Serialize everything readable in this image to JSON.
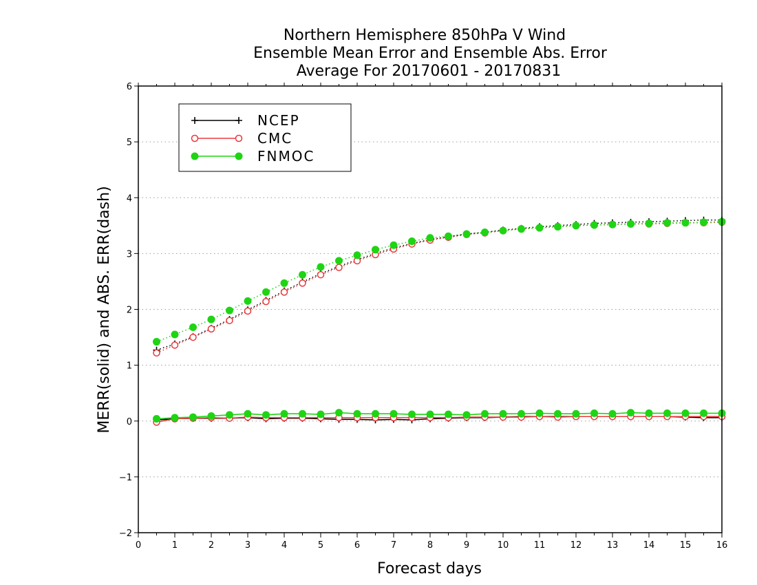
{
  "chart_data": {
    "type": "line",
    "title_lines": [
      "Northern Hemisphere 850hPa V Wind",
      "Ensemble Mean Error and Ensemble Abs. Error",
      "Average For 20170601 - 20170831"
    ],
    "xlabel": "Forecast days",
    "ylabel": "MERR(solid) and ABS. ERR(dash)",
    "xlim": [
      0,
      16
    ],
    "ylim": [
      -2,
      6
    ],
    "x_ticks": [
      "0",
      "1",
      "2",
      "3",
      "4",
      "5",
      "6",
      "7",
      "8",
      "9",
      "10",
      "11",
      "12",
      "13",
      "14",
      "15",
      "16"
    ],
    "y_ticks": [
      "−2",
      "−1",
      "0",
      "1",
      "2",
      "3",
      "4",
      "5",
      "6"
    ],
    "grid": "horizontal dotted",
    "legend_position": "top-left",
    "x": [
      0.5,
      1,
      1.5,
      2,
      2.5,
      3,
      3.5,
      4,
      4.5,
      5,
      5.5,
      6,
      6.5,
      7,
      7.5,
      8,
      8.5,
      9,
      9.5,
      10,
      10.5,
      11,
      11.5,
      12,
      12.5,
      13,
      13.5,
      14,
      14.5,
      15,
      15.5,
      16
    ],
    "series": [
      {
        "name": "NCEP",
        "color": "#000000",
        "marker": "plus",
        "merr": [
          0.02,
          0.04,
          0.05,
          0.05,
          0.05,
          0.06,
          0.04,
          0.05,
          0.05,
          0.04,
          0.03,
          0.03,
          0.02,
          0.03,
          0.02,
          0.04,
          0.05,
          0.06,
          0.06,
          0.07,
          0.08,
          0.08,
          0.08,
          0.08,
          0.08,
          0.08,
          0.08,
          0.08,
          0.08,
          0.07,
          0.06,
          0.06
        ],
        "abs_err": [
          1.27,
          1.38,
          1.51,
          1.66,
          1.82,
          1.99,
          2.16,
          2.33,
          2.49,
          2.64,
          2.77,
          2.89,
          3.0,
          3.1,
          3.18,
          3.25,
          3.3,
          3.35,
          3.38,
          3.42,
          3.45,
          3.48,
          3.5,
          3.52,
          3.54,
          3.55,
          3.56,
          3.57,
          3.58,
          3.59,
          3.6,
          3.6
        ]
      },
      {
        "name": "CMC",
        "color": "#e8383b",
        "marker": "open-circle",
        "merr": [
          -0.02,
          0.04,
          0.05,
          0.06,
          0.05,
          0.07,
          0.06,
          0.06,
          0.06,
          0.06,
          0.06,
          0.06,
          0.06,
          0.06,
          0.06,
          0.06,
          0.06,
          0.07,
          0.07,
          0.07,
          0.07,
          0.08,
          0.07,
          0.08,
          0.08,
          0.08,
          0.08,
          0.08,
          0.08,
          0.08,
          0.08,
          0.08
        ],
        "abs_err": [
          1.22,
          1.36,
          1.5,
          1.65,
          1.8,
          1.97,
          2.14,
          2.31,
          2.47,
          2.62,
          2.75,
          2.87,
          2.98,
          3.08,
          3.17,
          3.24,
          3.29,
          3.34,
          3.37,
          3.41,
          3.44,
          3.46,
          3.48,
          3.5,
          3.51,
          3.52,
          3.53,
          3.53,
          3.54,
          3.55,
          3.55,
          3.56
        ]
      },
      {
        "name": "FNMOC",
        "color": "#1fd414",
        "marker": "filled-circle",
        "merr": [
          0.04,
          0.06,
          0.07,
          0.09,
          0.11,
          0.13,
          0.11,
          0.13,
          0.13,
          0.12,
          0.15,
          0.13,
          0.13,
          0.13,
          0.12,
          0.12,
          0.12,
          0.11,
          0.13,
          0.13,
          0.13,
          0.14,
          0.13,
          0.13,
          0.14,
          0.13,
          0.15,
          0.14,
          0.14,
          0.14,
          0.14,
          0.14
        ],
        "abs_err": [
          1.42,
          1.55,
          1.68,
          1.82,
          1.98,
          2.15,
          2.31,
          2.47,
          2.62,
          2.76,
          2.87,
          2.97,
          3.07,
          3.15,
          3.22,
          3.28,
          3.31,
          3.35,
          3.38,
          3.41,
          3.44,
          3.46,
          3.48,
          3.5,
          3.51,
          3.52,
          3.53,
          3.54,
          3.55,
          3.55,
          3.56,
          3.57
        ]
      }
    ]
  }
}
